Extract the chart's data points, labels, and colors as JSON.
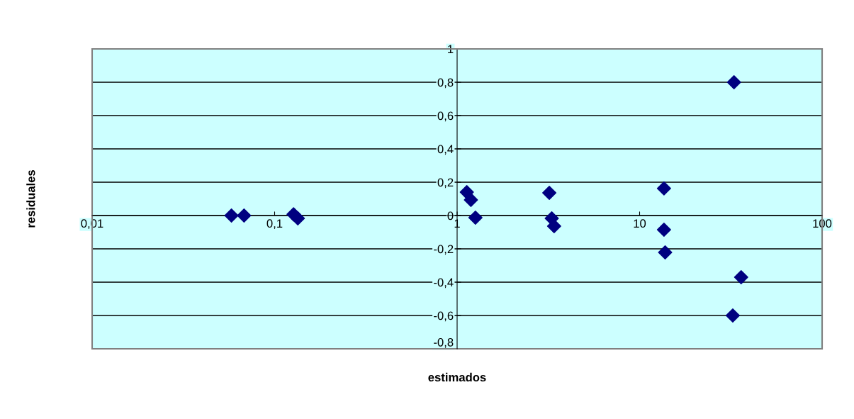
{
  "chart_data": {
    "type": "scatter",
    "xlabel": "estimados",
    "ylabel": "residuales",
    "log": "x",
    "grid": "y",
    "marker": "diamond",
    "xlim": [
      0.01,
      100
    ],
    "ylim": [
      -0.8,
      1
    ],
    "xticks": [
      {
        "value": 0.01,
        "label": "0,01"
      },
      {
        "value": 0.1,
        "label": "0,1"
      },
      {
        "value": 1,
        "label": "1"
      },
      {
        "value": 10,
        "label": "10"
      },
      {
        "value": 100,
        "label": "100"
      }
    ],
    "yticks": [
      {
        "value": -0.8,
        "label": "-0,8"
      },
      {
        "value": -0.6,
        "label": "-0,6"
      },
      {
        "value": -0.4,
        "label": "-0,4"
      },
      {
        "value": -0.2,
        "label": "-0,2"
      },
      {
        "value": 0,
        "label": "0"
      },
      {
        "value": 0.2,
        "label": "0,2"
      },
      {
        "value": 0.4,
        "label": "0,4"
      },
      {
        "value": 0.6,
        "label": "0,6"
      },
      {
        "value": 0.8,
        "label": "0,8"
      },
      {
        "value": 1,
        "label": "1"
      }
    ],
    "series": [
      {
        "color": "#000080",
        "x": [
          0.058,
          0.068,
          0.127,
          0.134,
          1.13,
          1.19,
          1.26,
          3.2,
          3.3,
          3.4,
          13.6,
          13.6,
          13.8,
          32.9,
          36.0,
          32.4
        ],
        "values": [
          0,
          0,
          0.007,
          -0.017,
          0.14,
          0.094,
          -0.013,
          0.136,
          -0.017,
          -0.064,
          0.163,
          -0.085,
          -0.221,
          0.8,
          -0.37,
          -0.6
        ]
      }
    ]
  }
}
